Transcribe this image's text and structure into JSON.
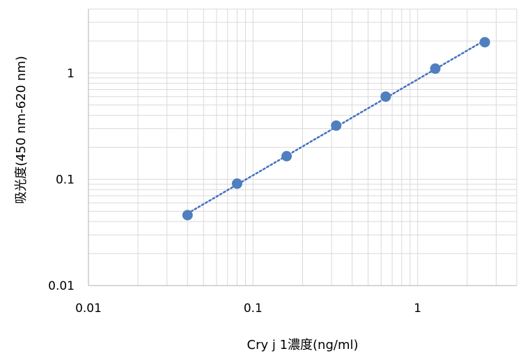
{
  "chart_data": {
    "type": "scatter",
    "title": "",
    "xlabel": "Cry j 1濃度(ng/ml)",
    "ylabel": "吸光度(450 nm-620 nm)",
    "x_scale": "log",
    "y_scale": "log",
    "xlim": [
      0.01,
      4
    ],
    "ylim": [
      0.01,
      4
    ],
    "x_ticks": [
      0.01,
      0.1,
      1
    ],
    "x_tick_labels": [
      "0.01",
      "0.1",
      "1"
    ],
    "y_ticks": [
      0.01,
      0.1,
      1
    ],
    "y_tick_labels": [
      "0.01",
      "0.1",
      "1"
    ],
    "grid": true,
    "legend": "none",
    "series": [
      {
        "x": [
          0.04,
          0.08,
          0.16,
          0.32,
          0.64,
          1.28,
          2.56
        ],
        "y": [
          0.046,
          0.091,
          0.165,
          0.32,
          0.6,
          1.1,
          1.95
        ],
        "marker_color": "#4f7fbf",
        "trendline": "dotted"
      }
    ],
    "trendline_color": "#4472c4",
    "grid_color": "#d9d9d9",
    "axis_color": "#bfbfbf"
  }
}
